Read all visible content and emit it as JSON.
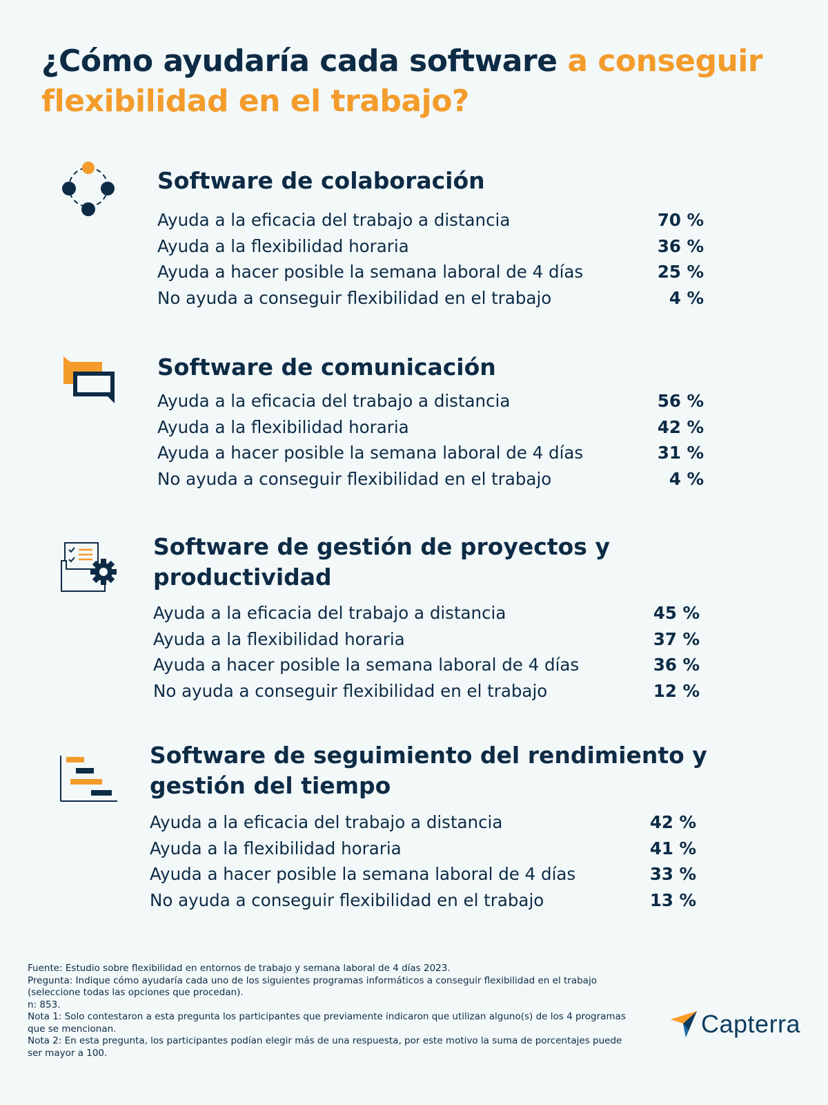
{
  "title": {
    "part1": "¿Cómo ayudaría cada software ",
    "part2": "a conseguir flexibilidad en el trabajo?"
  },
  "colors": {
    "navy": "#0d2b45",
    "orange": "#f39c2b",
    "background": "#f3f8f9"
  },
  "sections": [
    {
      "icon": "collaboration-network-icon",
      "title": "Software de colaboración",
      "rows": [
        {
          "label": "Ayuda a la eficacia del trabajo a distancia",
          "value": "70 %"
        },
        {
          "label": "Ayuda a la flexibilidad horaria",
          "value": "36 %"
        },
        {
          "label": "Ayuda a hacer posible la semana laboral de 4 días",
          "value": "25 %"
        },
        {
          "label": "No ayuda a conseguir flexibilidad en el trabajo",
          "value": "4 %"
        }
      ]
    },
    {
      "icon": "chat-bubbles-icon",
      "title": "Software de comunicación",
      "rows": [
        {
          "label": "Ayuda a la eficacia del trabajo a distancia",
          "value": "56 %"
        },
        {
          "label": "Ayuda a la flexibilidad horaria",
          "value": "42 %"
        },
        {
          "label": "Ayuda a hacer posible la semana laboral de 4 días",
          "value": "31 %"
        },
        {
          "label": "No ayuda a conseguir flexibilidad en el trabajo",
          "value": "4 %"
        }
      ]
    },
    {
      "icon": "checklist-gear-folder-icon",
      "title": "Software de gestión de proyectos y productividad",
      "rows": [
        {
          "label": "Ayuda a la eficacia del trabajo a distancia",
          "value": "45 %"
        },
        {
          "label": "Ayuda a la flexibilidad horaria",
          "value": "37 %"
        },
        {
          "label": "Ayuda a hacer posible la semana laboral de 4 días",
          "value": "36 %"
        },
        {
          "label": "No ayuda a conseguir flexibilidad en el trabajo",
          "value": "12 %"
        }
      ]
    },
    {
      "icon": "gantt-chart-icon",
      "title": "Software de seguimiento del rendimiento y gestión del tiempo",
      "rows": [
        {
          "label": "Ayuda a la eficacia del trabajo a distancia",
          "value": "42 %"
        },
        {
          "label": "Ayuda a la flexibilidad horaria",
          "value": "41 %"
        },
        {
          "label": "Ayuda a hacer posible la semana laboral de 4 días",
          "value": "33 %"
        },
        {
          "label": "No ayuda a conseguir flexibilidad en el trabajo",
          "value": "13 %"
        }
      ]
    }
  ],
  "footer": {
    "source": "Fuente: Estudio sobre flexibilidad en entornos de trabajo y semana laboral de 4 días 2023.",
    "question": "Pregunta: Indique cómo ayudaría cada uno de los siguientes programas informáticos a conseguir flexibilidad en el trabajo (seleccione todas las opciones que procedan).",
    "n": "n: 853.",
    "note1": "Nota 1: Solo contestaron a esta pregunta los participantes que previamente indicaron que utilizan alguno(s) de los 4 programas que se mencionan.",
    "note2": "Nota 2: En esta pregunta, los participantes podían elegir más de una respuesta, por este motivo la suma de porcentajes puede ser mayor a 100."
  },
  "logo": {
    "text": "Capterra",
    "icon": "capterra-arrow-logo-icon"
  }
}
